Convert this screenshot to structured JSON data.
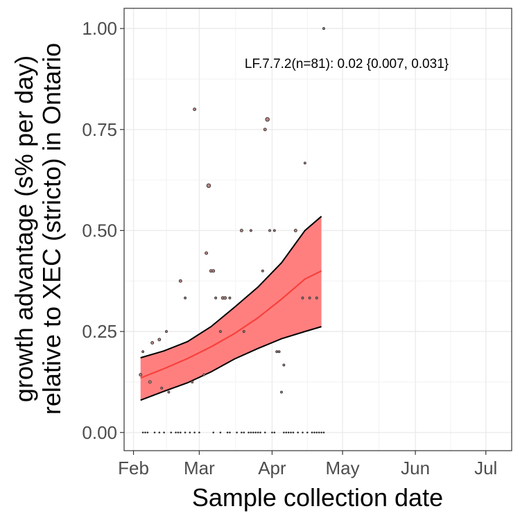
{
  "chart_data": {
    "type": "scatter",
    "title": "",
    "xlabel": "Sample collection date",
    "ylabel_lines": [
      "growth advantage (s% per day)",
      "relative to XEC (stricto) in Ontario"
    ],
    "annotation": "LF.7.7.2(n=81): 0.02 {0.007, 0.031}",
    "x_ticks": [
      {
        "date": "2025-02-01",
        "label": "Feb"
      },
      {
        "date": "2025-03-01",
        "label": "Mar"
      },
      {
        "date": "2025-04-01",
        "label": "Apr"
      },
      {
        "date": "2025-05-01",
        "label": "May"
      },
      {
        "date": "2025-06-01",
        "label": "Jun"
      },
      {
        "date": "2025-07-01",
        "label": "Jul"
      }
    ],
    "y_ticks": [
      {
        "value": 0,
        "label": "0.00"
      },
      {
        "value": 0.25,
        "label": "0.25"
      },
      {
        "value": 0.5,
        "label": "0.50"
      },
      {
        "value": 0.75,
        "label": "0.75"
      },
      {
        "value": 1,
        "label": "1.00"
      }
    ],
    "xlim": [
      "2025-01-28",
      "2025-07-12"
    ],
    "ylim": [
      -0.045,
      1.05
    ],
    "grid": true,
    "colors": {
      "ribbon": "#ff7f7f",
      "fit": "#f8413b",
      "points_fill": "#b7847f",
      "points_edge": "#333333"
    },
    "fit": {
      "name": "LF.7.7.2",
      "x": [
        "2025-02-04",
        "2025-02-14",
        "2025-02-24",
        "2025-03-06",
        "2025-03-16",
        "2025-03-26",
        "2025-04-05",
        "2025-04-15",
        "2025-04-22"
      ],
      "y": [
        0.135,
        0.158,
        0.183,
        0.212,
        0.245,
        0.284,
        0.33,
        0.38,
        0.4
      ],
      "lower": [
        0.08,
        0.102,
        0.123,
        0.15,
        0.182,
        0.208,
        0.232,
        0.25,
        0.262
      ],
      "upper": [
        0.185,
        0.202,
        0.225,
        0.262,
        0.31,
        0.36,
        0.42,
        0.5,
        0.535
      ]
    },
    "points": [
      {
        "x": "2025-02-04",
        "y": 0.143,
        "size": 2
      },
      {
        "x": "2025-02-05",
        "y": 0.2,
        "size": 1.5
      },
      {
        "x": "2025-02-08",
        "y": 0.125,
        "size": 2
      },
      {
        "x": "2025-02-09",
        "y": 0.222,
        "size": 2
      },
      {
        "x": "2025-02-12",
        "y": 0.23,
        "size": 2
      },
      {
        "x": "2025-02-13",
        "y": 0.11,
        "size": 1.5
      },
      {
        "x": "2025-02-15",
        "y": 0.25,
        "size": 1.5
      },
      {
        "x": "2025-02-16",
        "y": 0.1,
        "size": 1.5
      },
      {
        "x": "2025-02-21",
        "y": 0.375,
        "size": 2
      },
      {
        "x": "2025-02-23",
        "y": 0.333,
        "size": 1.5
      },
      {
        "x": "2025-02-26",
        "y": 0.125,
        "size": 1.5
      },
      {
        "x": "2025-02-27",
        "y": 0.8,
        "size": 2
      },
      {
        "x": "2025-03-03",
        "y": 0.143,
        "size": 1.5
      },
      {
        "x": "2025-03-04",
        "y": 0.444,
        "size": 2
      },
      {
        "x": "2025-03-05",
        "y": 0.611,
        "size": 2.8
      },
      {
        "x": "2025-03-06",
        "y": 0.4,
        "size": 2
      },
      {
        "x": "2025-03-07",
        "y": 0.4,
        "size": 2
      },
      {
        "x": "2025-03-08",
        "y": 0.333,
        "size": 1.5
      },
      {
        "x": "2025-03-10",
        "y": 0.25,
        "size": 1.5
      },
      {
        "x": "2025-03-11",
        "y": 0.333,
        "size": 2
      },
      {
        "x": "2025-03-12",
        "y": 0.333,
        "size": 2
      },
      {
        "x": "2025-03-14",
        "y": 0.333,
        "size": 1.5
      },
      {
        "x": "2025-03-19",
        "y": 0.5,
        "size": 2
      },
      {
        "x": "2025-03-20",
        "y": 0.25,
        "size": 1.5
      },
      {
        "x": "2025-03-23",
        "y": 0.5,
        "size": 1.5
      },
      {
        "x": "2025-03-28",
        "y": 0.4,
        "size": 1.5
      },
      {
        "x": "2025-03-29",
        "y": 0.75,
        "size": 2
      },
      {
        "x": "2025-03-30",
        "y": 0.775,
        "size": 2.8
      },
      {
        "x": "2025-03-31",
        "y": 0.5,
        "size": 1.5
      },
      {
        "x": "2025-04-02",
        "y": 0.5,
        "size": 1.5
      },
      {
        "x": "2025-04-03",
        "y": 0.2,
        "size": 1.5
      },
      {
        "x": "2025-04-04",
        "y": 0.2,
        "size": 1.5
      },
      {
        "x": "2025-04-05",
        "y": 0.1,
        "size": 1.5
      },
      {
        "x": "2025-04-06",
        "y": 0.167,
        "size": 1.5
      },
      {
        "x": "2025-04-11",
        "y": 0.5,
        "size": 2
      },
      {
        "x": "2025-04-14",
        "y": 0.333,
        "size": 1.5
      },
      {
        "x": "2025-04-15",
        "y": 0.667,
        "size": 1.5
      },
      {
        "x": "2025-04-17",
        "y": 0.333,
        "size": 1.5
      },
      {
        "x": "2025-04-20",
        "y": 0.333,
        "size": 1.5
      },
      {
        "x": "2025-04-23",
        "y": 1.0,
        "size": 1.5
      }
    ],
    "zero_points_dates": [
      "2025-02-05",
      "2025-02-06",
      "2025-02-07",
      "2025-02-10",
      "2025-02-12",
      "2025-02-14",
      "2025-02-17",
      "2025-02-19",
      "2025-02-20",
      "2025-02-21",
      "2025-02-23",
      "2025-02-25",
      "2025-02-27",
      "2025-03-01",
      "2025-03-07",
      "2025-03-10",
      "2025-03-13",
      "2025-03-14",
      "2025-03-17",
      "2025-03-19",
      "2025-03-20",
      "2025-03-22",
      "2025-03-23",
      "2025-03-24",
      "2025-03-25",
      "2025-03-26",
      "2025-03-27",
      "2025-03-29",
      "2025-04-01",
      "2025-04-02",
      "2025-04-06",
      "2025-04-07",
      "2025-04-08",
      "2025-04-09",
      "2025-04-10",
      "2025-04-12",
      "2025-04-14",
      "2025-04-16",
      "2025-04-18",
      "2025-04-19",
      "2025-04-20",
      "2025-04-21",
      "2025-04-22",
      "2025-04-23"
    ]
  }
}
